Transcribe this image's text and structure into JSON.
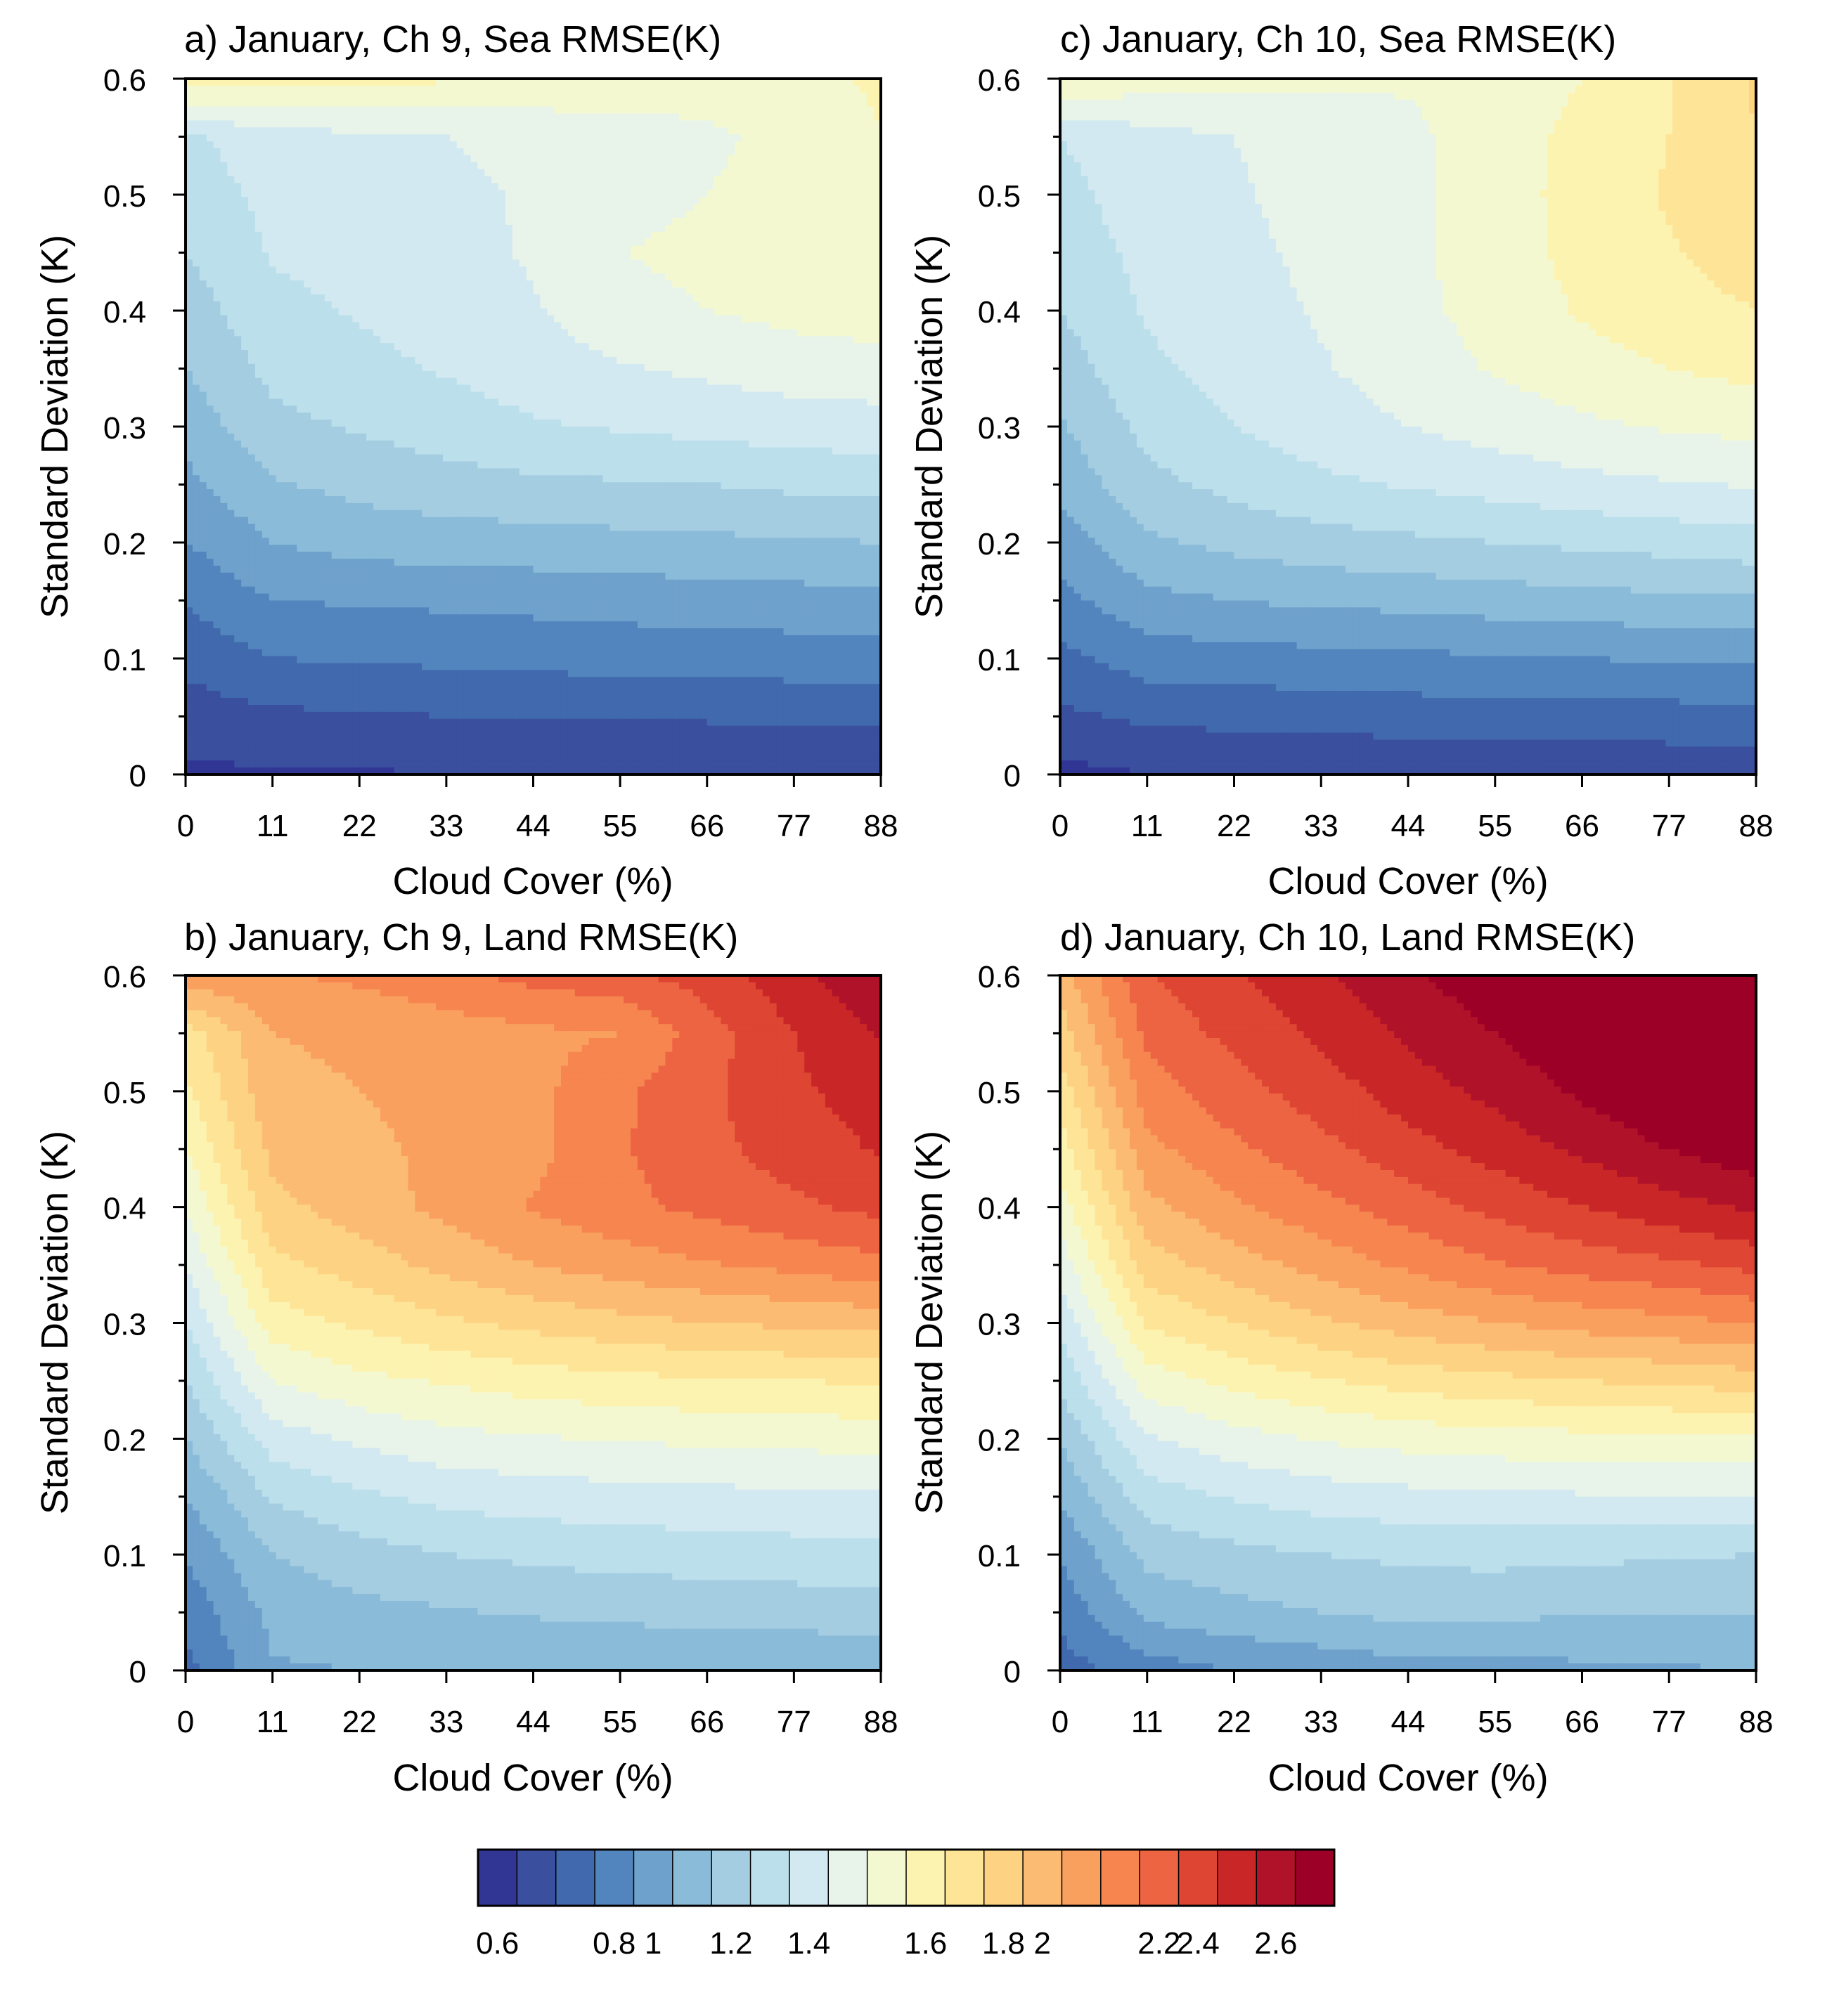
{
  "figure": {
    "colorbar": {
      "levels_min": 0.55,
      "level_step": 0.1,
      "colors": [
        "#313695",
        "#3a4f9e",
        "#4169ad",
        "#5285bd",
        "#6ea1cb",
        "#8abbd8",
        "#a5cde2",
        "#bbdfeb",
        "#d2e9f1",
        "#e8f4ea",
        "#f3f8d0",
        "#fdf3b0",
        "#fee497",
        "#fdd283",
        "#fcbb73",
        "#faa05e",
        "#f6854f",
        "#ed6443",
        "#de4532",
        "#c92628",
        "#b01229",
        "#9d0027"
      ],
      "tick_values": [
        0.6,
        0.8,
        1.0,
        1.2,
        1.4,
        1.6,
        1.8,
        2.0,
        2.2,
        2.4,
        2.6
      ],
      "tick_labels": [
        "0.6",
        "0.8",
        "1",
        "1.2",
        "1.4",
        "1.6",
        "1.8",
        "2",
        "2.2",
        "2.4",
        "2.6"
      ]
    }
  },
  "chart_data": [
    {
      "type": "heatmap",
      "panel": "a",
      "title": "a) January, Ch 9, Sea RMSE(K)",
      "xlabel": "Cloud Cover (%)",
      "ylabel": "Standard Deviation (K)",
      "xlim": [
        0,
        88
      ],
      "ylim": [
        0,
        0.6
      ],
      "x_ticks": [
        0,
        11,
        22,
        33,
        44,
        55,
        66,
        77,
        88
      ],
      "x_tick_labels": [
        "0",
        "11",
        "22",
        "33",
        "44",
        "55",
        "66",
        "77",
        "88"
      ],
      "y_ticks": [
        0,
        0.1,
        0.2,
        0.3,
        0.4,
        0.5,
        0.6
      ],
      "y_tick_labels": [
        "0",
        "0.1",
        "0.2",
        "0.3",
        "0.4",
        "0.5",
        "0.6"
      ],
      "x": [
        0,
        11,
        22,
        33,
        44,
        55,
        66,
        77,
        88
      ],
      "y": [
        0,
        0.05,
        0.1,
        0.15,
        0.2,
        0.25,
        0.3,
        0.35,
        0.4,
        0.45,
        0.5,
        0.55,
        0.6
      ],
      "z": [
        [
          0.53,
          0.54,
          0.54,
          0.55,
          0.56,
          0.56,
          0.56,
          0.57,
          0.57
        ],
        [
          0.6,
          0.63,
          0.64,
          0.65,
          0.65,
          0.66,
          0.66,
          0.67,
          0.67
        ],
        [
          0.68,
          0.75,
          0.76,
          0.77,
          0.78,
          0.79,
          0.8,
          0.8,
          0.81
        ],
        [
          0.76,
          0.85,
          0.86,
          0.87,
          0.88,
          0.89,
          0.9,
          0.91,
          0.92
        ],
        [
          0.85,
          0.95,
          0.99,
          1.0,
          1.01,
          1.02,
          1.03,
          1.04,
          1.05
        ],
        [
          0.92,
          1.04,
          1.08,
          1.11,
          1.13,
          1.14,
          1.15,
          1.17,
          1.18
        ],
        [
          0.99,
          1.12,
          1.16,
          1.2,
          1.24,
          1.26,
          1.28,
          1.3,
          1.31
        ],
        [
          1.05,
          1.18,
          1.22,
          1.26,
          1.3,
          1.34,
          1.37,
          1.4,
          1.41
        ],
        [
          1.1,
          1.22,
          1.26,
          1.3,
          1.34,
          1.42,
          1.45,
          1.48,
          1.5
        ],
        [
          1.15,
          1.26,
          1.29,
          1.32,
          1.36,
          1.45,
          1.47,
          1.51,
          1.53
        ],
        [
          1.19,
          1.28,
          1.31,
          1.33,
          1.36,
          1.42,
          1.45,
          1.5,
          1.55
        ],
        [
          1.23,
          1.31,
          1.33,
          1.35,
          1.37,
          1.4,
          1.43,
          1.48,
          1.55
        ],
        [
          1.62,
          1.6,
          1.58,
          1.56,
          1.54,
          1.52,
          1.5,
          1.53,
          1.56
        ]
      ]
    },
    {
      "type": "heatmap",
      "panel": "c",
      "title": "c) January, Ch 10, Sea RMSE(K)",
      "xlabel": "Cloud Cover (%)",
      "ylabel": "Standard Deviation (K)",
      "xlim": [
        0,
        88
      ],
      "ylim": [
        0,
        0.6
      ],
      "x_ticks": [
        0,
        11,
        22,
        33,
        44,
        55,
        66,
        77,
        88
      ],
      "x_tick_labels": [
        "0",
        "11",
        "22",
        "33",
        "44",
        "55",
        "66",
        "77",
        "88"
      ],
      "y_ticks": [
        0,
        0.1,
        0.2,
        0.3,
        0.4,
        0.5,
        0.6
      ],
      "y_tick_labels": [
        "0",
        "0.1",
        "0.2",
        "0.3",
        "0.4",
        "0.5",
        "0.6"
      ],
      "x": [
        0,
        11,
        22,
        33,
        44,
        55,
        66,
        77,
        88
      ],
      "y": [
        0,
        0.05,
        0.1,
        0.15,
        0.2,
        0.25,
        0.3,
        0.35,
        0.4,
        0.45,
        0.5,
        0.55,
        0.6
      ],
      "z": [
        [
          0.52,
          0.55,
          0.56,
          0.56,
          0.56,
          0.57,
          0.57,
          0.58,
          0.58
        ],
        [
          0.63,
          0.67,
          0.68,
          0.69,
          0.7,
          0.7,
          0.71,
          0.71,
          0.72
        ],
        [
          0.72,
          0.8,
          0.81,
          0.82,
          0.83,
          0.84,
          0.85,
          0.86,
          0.87
        ],
        [
          0.82,
          0.92,
          0.95,
          0.97,
          0.98,
          1.0,
          1.01,
          1.03,
          1.04
        ],
        [
          0.9,
          1.03,
          1.08,
          1.11,
          1.13,
          1.15,
          1.17,
          1.19,
          1.21
        ],
        [
          0.98,
          1.12,
          1.18,
          1.23,
          1.26,
          1.29,
          1.32,
          1.34,
          1.36
        ],
        [
          1.04,
          1.18,
          1.25,
          1.3,
          1.35,
          1.39,
          1.43,
          1.46,
          1.48
        ],
        [
          1.1,
          1.23,
          1.29,
          1.34,
          1.4,
          1.46,
          1.51,
          1.55,
          1.58
        ],
        [
          1.15,
          1.26,
          1.31,
          1.36,
          1.42,
          1.49,
          1.56,
          1.61,
          1.65
        ],
        [
          1.19,
          1.28,
          1.33,
          1.37,
          1.43,
          1.5,
          1.58,
          1.64,
          1.7
        ],
        [
          1.22,
          1.3,
          1.34,
          1.38,
          1.43,
          1.5,
          1.59,
          1.66,
          1.73
        ],
        [
          1.25,
          1.32,
          1.35,
          1.39,
          1.43,
          1.5,
          1.58,
          1.65,
          1.75
        ],
        [
          1.55,
          1.5,
          1.48,
          1.47,
          1.46,
          1.48,
          1.55,
          1.65,
          1.76
        ]
      ]
    },
    {
      "type": "heatmap",
      "panel": "b",
      "title": "b) January, Ch 9, Land RMSE(K)",
      "xlabel": "Cloud Cover (%)",
      "ylabel": "Standard Deviation (K)",
      "xlim": [
        0,
        88
      ],
      "ylim": [
        0,
        0.6
      ],
      "x_ticks": [
        0,
        11,
        22,
        33,
        44,
        55,
        66,
        77,
        88
      ],
      "x_tick_labels": [
        "0",
        "11",
        "22",
        "33",
        "44",
        "55",
        "66",
        "77",
        "88"
      ],
      "y_ticks": [
        0,
        0.1,
        0.2,
        0.3,
        0.4,
        0.5,
        0.6
      ],
      "y_tick_labels": [
        "0",
        "0.1",
        "0.2",
        "0.3",
        "0.4",
        "0.5",
        "0.6"
      ],
      "x": [
        0,
        11,
        22,
        33,
        44,
        55,
        66,
        77,
        88
      ],
      "y": [
        0,
        0.05,
        0.1,
        0.15,
        0.2,
        0.25,
        0.3,
        0.35,
        0.4,
        0.45,
        0.5,
        0.55,
        0.6
      ],
      "z": [
        [
          0.72,
          0.94,
          0.95,
          0.96,
          0.95,
          0.97,
          0.97,
          0.96,
          0.98
        ],
        [
          0.78,
          0.98,
          1.02,
          1.04,
          1.06,
          1.07,
          1.08,
          1.09,
          1.1
        ],
        [
          0.86,
          1.05,
          1.11,
          1.15,
          1.17,
          1.19,
          1.2,
          1.21,
          1.22
        ],
        [
          0.95,
          1.16,
          1.23,
          1.28,
          1.3,
          1.31,
          1.32,
          1.33,
          1.34
        ],
        [
          1.05,
          1.3,
          1.37,
          1.42,
          1.44,
          1.46,
          1.47,
          1.48,
          1.49
        ],
        [
          1.15,
          1.45,
          1.52,
          1.56,
          1.6,
          1.62,
          1.64,
          1.65,
          1.66
        ],
        [
          1.25,
          1.6,
          1.67,
          1.73,
          1.78,
          1.82,
          1.85,
          1.87,
          1.89
        ],
        [
          1.35,
          1.72,
          1.8,
          1.88,
          1.95,
          2.0,
          2.04,
          2.08,
          2.12
        ],
        [
          1.45,
          1.82,
          1.9,
          1.98,
          2.06,
          2.12,
          2.18,
          2.23,
          2.28
        ],
        [
          1.55,
          1.88,
          1.93,
          1.97,
          2.02,
          2.14,
          2.22,
          2.3,
          2.36
        ],
        [
          1.63,
          1.92,
          1.95,
          1.98,
          2.02,
          2.13,
          2.23,
          2.33,
          2.4
        ],
        [
          1.7,
          1.95,
          1.97,
          2.0,
          2.03,
          2.05,
          2.2,
          2.35,
          2.46
        ],
        [
          2.02,
          2.04,
          2.07,
          2.12,
          2.18,
          2.22,
          2.3,
          2.42,
          2.55
        ]
      ]
    },
    {
      "type": "heatmap",
      "panel": "d",
      "title": "d) January, Ch 10, Land RMSE(K)",
      "xlabel": "Cloud Cover (%)",
      "ylabel": "Standard Deviation (K)",
      "xlim": [
        0,
        88
      ],
      "ylim": [
        0,
        0.6
      ],
      "x_ticks": [
        0,
        11,
        22,
        33,
        44,
        55,
        66,
        77,
        88
      ],
      "x_tick_labels": [
        "0",
        "11",
        "22",
        "33",
        "44",
        "55",
        "66",
        "77",
        "88"
      ],
      "y_ticks": [
        0,
        0.1,
        0.2,
        0.3,
        0.4,
        0.5,
        0.6
      ],
      "y_tick_labels": [
        "0",
        "0.1",
        "0.2",
        "0.3",
        "0.4",
        "0.5",
        "0.6"
      ],
      "x": [
        0,
        11,
        22,
        33,
        44,
        55,
        66,
        77,
        88
      ],
      "y": [
        0,
        0.05,
        0.1,
        0.15,
        0.2,
        0.25,
        0.3,
        0.35,
        0.4,
        0.45,
        0.5,
        0.55,
        0.6
      ],
      "z": [
        [
          0.7,
          0.8,
          0.85,
          0.88,
          0.91,
          0.9,
          0.93,
          0.94,
          0.95
        ],
        [
          0.78,
          0.98,
          1.02,
          1.05,
          1.08,
          1.07,
          1.06,
          1.05,
          1.05
        ],
        [
          0.86,
          1.08,
          1.12,
          1.15,
          1.17,
          1.18,
          1.17,
          1.16,
          1.15
        ],
        [
          0.96,
          1.2,
          1.26,
          1.3,
          1.32,
          1.33,
          1.34,
          1.34,
          1.34
        ],
        [
          1.06,
          1.34,
          1.41,
          1.46,
          1.49,
          1.51,
          1.52,
          1.53,
          1.54
        ],
        [
          1.17,
          1.5,
          1.58,
          1.64,
          1.69,
          1.72,
          1.75,
          1.77,
          1.8
        ],
        [
          1.28,
          1.66,
          1.75,
          1.83,
          1.9,
          1.95,
          1.99,
          2.02,
          2.06
        ],
        [
          1.39,
          1.8,
          1.9,
          1.99,
          2.07,
          2.14,
          2.19,
          2.23,
          2.28
        ],
        [
          1.5,
          1.92,
          2.03,
          2.12,
          2.2,
          2.28,
          2.35,
          2.41,
          2.47
        ],
        [
          1.6,
          2.02,
          2.13,
          2.22,
          2.31,
          2.39,
          2.47,
          2.55,
          2.62
        ],
        [
          1.7,
          2.1,
          2.21,
          2.3,
          2.4,
          2.48,
          2.57,
          2.66,
          2.74
        ],
        [
          1.8,
          2.18,
          2.28,
          2.37,
          2.47,
          2.55,
          2.64,
          2.74,
          2.84
        ],
        [
          1.9,
          2.24,
          2.34,
          2.43,
          2.53,
          2.62,
          2.71,
          2.82,
          2.94
        ]
      ]
    }
  ]
}
